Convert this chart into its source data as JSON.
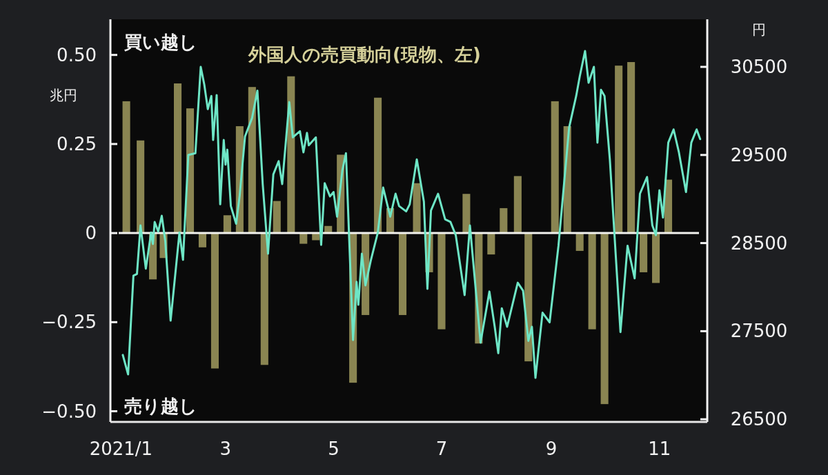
{
  "chart_data": {
    "type": "bar",
    "ylabel": "兆円",
    "y2label": "円",
    "annotations": [
      "買い越し",
      "売り越し"
    ],
    "xlim": [
      "2020-12-26",
      "2021-11-28"
    ],
    "xticks": [
      {
        "value": "2021-01-01",
        "label": "2021/1"
      },
      {
        "value": "2021-03-01",
        "label": "3"
      },
      {
        "value": "2021-05-01",
        "label": "5"
      },
      {
        "value": "2021-07-01",
        "label": "7"
      },
      {
        "value": "2021-09-01",
        "label": "9"
      },
      {
        "value": "2021-11-01",
        "label": "11"
      }
    ],
    "ylim": [
      -0.53,
      0.6
    ],
    "yticks": [
      {
        "value": 0.5,
        "label": "0.50"
      },
      0.25,
      0,
      {
        "value": -0.25,
        "label": "−0.25"
      },
      {
        "value": -0.5,
        "label": "−0.50"
      }
    ],
    "y2lim": [
      26470,
      31040
    ],
    "y2ticks": [
      26500,
      27500,
      28500,
      29500,
      30500
    ],
    "ref_lines": [
      {
        "axis": "y",
        "value": 0,
        "color": "#f2f2ee"
      }
    ],
    "series": [
      {
        "name": "外国人の売買動向(現物、左)",
        "color": "#8a8552",
        "x": [
          "2021-01-04",
          "2021-01-12",
          "2021-01-19",
          "2021-01-25",
          "2021-02-02",
          "2021-02-09",
          "2021-02-16",
          "2021-02-23",
          "2021-03-02",
          "2021-03-09",
          "2021-03-16",
          "2021-03-23",
          "2021-03-30",
          "2021-04-07",
          "2021-04-14",
          "2021-04-21",
          "2021-04-28",
          "2021-05-05",
          "2021-05-12",
          "2021-05-19",
          "2021-05-26",
          "2021-06-02",
          "2021-06-09",
          "2021-06-17",
          "2021-06-24",
          "2021-07-01",
          "2021-07-15",
          "2021-07-22",
          "2021-07-29",
          "2021-08-05",
          "2021-08-13",
          "2021-08-19",
          "2021-09-03",
          "2021-09-10",
          "2021-09-17",
          "2021-09-24",
          "2021-10-01",
          "2021-10-09",
          "2021-10-16",
          "2021-10-23",
          "2021-10-30",
          "2021-11-06"
        ],
        "values": [
          0.37,
          0.26,
          -0.13,
          -0.07,
          0.42,
          0.35,
          -0.04,
          -0.38,
          0.05,
          0.3,
          0.41,
          -0.37,
          0.09,
          0.44,
          -0.03,
          -0.02,
          0.02,
          0.22,
          -0.42,
          -0.23,
          0.38,
          0.07,
          -0.23,
          0.14,
          -0.11,
          -0.27,
          0.11,
          -0.31,
          -0.06,
          0.07,
          0.16,
          -0.36,
          0.37,
          0.3,
          -0.05,
          -0.27,
          -0.48,
          0.47,
          0.48,
          -0.11,
          -0.14,
          0.15
        ]
      },
      {
        "type": "line",
        "axis": "y2",
        "color": "#6ee6c6",
        "x": [
          "2021-01-02",
          "2021-01-05",
          "2021-01-08",
          "2021-01-10",
          "2021-01-12",
          "2021-01-15",
          "2021-01-18",
          "2021-01-19",
          "2021-01-20",
          "2021-01-22",
          "2021-01-24",
          "2021-01-26",
          "2021-01-29",
          "2021-02-03",
          "2021-02-05",
          "2021-02-08",
          "2021-02-12",
          "2021-02-15",
          "2021-02-17",
          "2021-02-19",
          "2021-02-21",
          "2021-02-22",
          "2021-02-24",
          "2021-02-26",
          "2021-02-28",
          "2021-03-01",
          "2021-03-02",
          "2021-03-04",
          "2021-03-07",
          "2021-03-09",
          "2021-03-12",
          "2021-03-16",
          "2021-03-19",
          "2021-03-22",
          "2021-03-25",
          "2021-03-28",
          "2021-03-31",
          "2021-04-02",
          "2021-04-06",
          "2021-04-08",
          "2021-04-12",
          "2021-04-14",
          "2021-04-16",
          "2021-04-17",
          "2021-04-21",
          "2021-04-24",
          "2021-04-26",
          "2021-04-29",
          "2021-05-01",
          "2021-05-03",
          "2021-05-06",
          "2021-05-08",
          "2021-05-12",
          "2021-05-14",
          "2021-05-15",
          "2021-05-17",
          "2021-05-19",
          "2021-05-22",
          "2021-05-26",
          "2021-05-29",
          "2021-06-02",
          "2021-06-05",
          "2021-06-07",
          "2021-06-11",
          "2021-06-13",
          "2021-06-17",
          "2021-06-21",
          "2021-06-23",
          "2021-06-25",
          "2021-06-29",
          "2021-07-03",
          "2021-07-06",
          "2021-07-09",
          "2021-07-14",
          "2021-07-17",
          "2021-07-23",
          "2021-07-28",
          "2021-07-31",
          "2021-08-02",
          "2021-08-04",
          "2021-08-07",
          "2021-08-13",
          "2021-08-16",
          "2021-08-19",
          "2021-08-21",
          "2021-08-23",
          "2021-08-27",
          "2021-08-31",
          "2021-09-05",
          "2021-09-11",
          "2021-09-15",
          "2021-09-17",
          "2021-09-20",
          "2021-09-22",
          "2021-09-25",
          "2021-09-27",
          "2021-09-29",
          "2021-10-01",
          "2021-10-04",
          "2021-10-10",
          "2021-10-14",
          "2021-10-18",
          "2021-10-21",
          "2021-10-25",
          "2021-10-28",
          "2021-10-30",
          "2021-11-01",
          "2021-11-03",
          "2021-11-06",
          "2021-11-09",
          "2021-11-12",
          "2021-11-16",
          "2021-11-19",
          "2021-11-22",
          "2021-11-24"
        ],
        "values": [
          27230,
          27010,
          28130,
          28150,
          28700,
          28210,
          28620,
          28490,
          28740,
          28630,
          28810,
          28520,
          27620,
          28620,
          28310,
          29500,
          29520,
          30500,
          30300,
          30020,
          30170,
          29670,
          30180,
          28940,
          29670,
          29390,
          29560,
          28920,
          28720,
          29040,
          29710,
          29920,
          30230,
          29170,
          28380,
          29280,
          29430,
          29170,
          30100,
          29700,
          29770,
          29530,
          29750,
          29610,
          29700,
          28480,
          29180,
          29030,
          29080,
          28800,
          29330,
          29520,
          27400,
          28060,
          27800,
          28380,
          28020,
          28300,
          28620,
          29130,
          28800,
          29060,
          28920,
          28860,
          28940,
          29450,
          28970,
          27980,
          28870,
          29060,
          28770,
          28740,
          28590,
          27910,
          28700,
          27370,
          27950,
          27550,
          27250,
          27760,
          27550,
          28050,
          27960,
          27390,
          27550,
          26970,
          27710,
          27600,
          28470,
          29810,
          30170,
          30390,
          30680,
          30320,
          30500,
          29640,
          30240,
          30170,
          29450,
          27490,
          28470,
          28100,
          29060,
          29250,
          28700,
          28590,
          29100,
          28790,
          29640,
          29790,
          29530,
          29080,
          29640,
          29790,
          29680
        ]
      }
    ]
  }
}
